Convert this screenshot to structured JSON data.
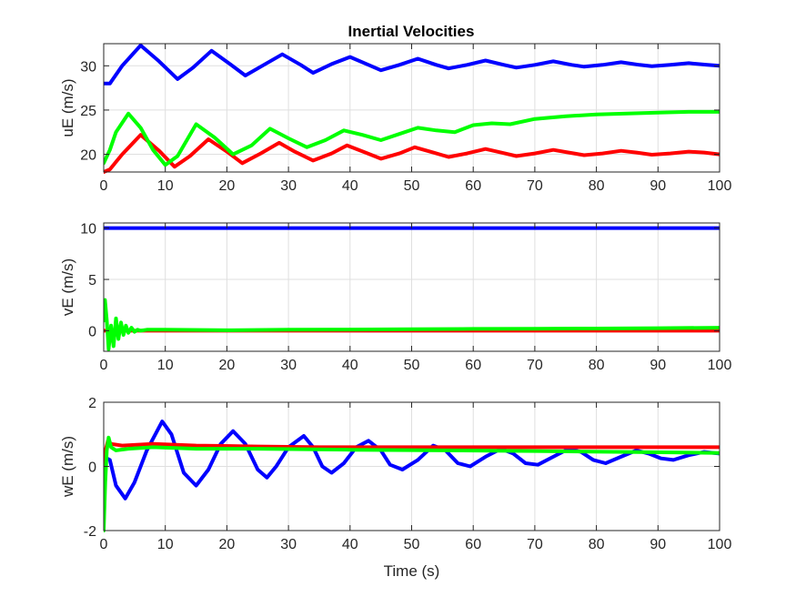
{
  "figure": {
    "title": "Inertial Velocities",
    "colors": {
      "blue": "#0000ff",
      "red": "#ff0000",
      "green": "#00ff00"
    }
  },
  "chart_data": [
    {
      "type": "line",
      "title": "Inertial Velocities",
      "xlabel": "",
      "ylabel": "uE (m/s)",
      "xlim": [
        0,
        100
      ],
      "ylim": [
        18,
        32.5
      ],
      "xticks": [
        0,
        10,
        20,
        30,
        40,
        50,
        60,
        70,
        80,
        90,
        100
      ],
      "yticks": [
        20,
        25,
        30
      ],
      "grid": true,
      "series": [
        {
          "color": "#0000ff",
          "x": [
            0,
            1,
            3,
            6,
            9,
            12,
            14.5,
            17.5,
            20.5,
            23,
            26,
            29,
            32,
            34,
            37,
            40,
            43,
            45,
            48,
            51,
            54,
            56,
            59,
            62,
            65,
            67,
            70,
            73,
            76,
            78,
            81,
            84,
            87,
            89,
            92,
            95,
            98,
            100
          ],
          "y": [
            28,
            28,
            30,
            32.3,
            30.5,
            28.5,
            29.8,
            31.7,
            30.2,
            28.9,
            30.1,
            31.3,
            30.1,
            29.2,
            30.2,
            31,
            30.1,
            29.5,
            30.1,
            30.8,
            30.1,
            29.7,
            30.1,
            30.6,
            30.1,
            29.8,
            30.1,
            30.5,
            30.1,
            29.9,
            30.1,
            30.4,
            30.1,
            29.95,
            30.1,
            30.3,
            30.1,
            30
          ]
        },
        {
          "color": "#ff0000",
          "x": [
            0,
            1,
            3,
            6,
            9,
            11.5,
            14,
            17,
            20,
            22.5,
            25.5,
            28.5,
            31,
            34,
            37,
            39.5,
            42.5,
            45,
            48,
            50.5,
            53.5,
            56,
            59,
            62,
            64.5,
            67,
            70,
            73,
            75.5,
            78,
            81,
            84,
            86.5,
            89,
            92,
            95,
            97.5,
            100
          ],
          "y": [
            18,
            18.3,
            20,
            22.2,
            20.4,
            18.6,
            19.8,
            21.7,
            20.3,
            19,
            20.1,
            21.3,
            20.3,
            19.3,
            20.1,
            21,
            20.2,
            19.5,
            20.1,
            20.8,
            20.2,
            19.7,
            20.1,
            20.6,
            20.2,
            19.8,
            20.1,
            20.5,
            20.2,
            19.9,
            20.1,
            20.4,
            20.2,
            19.95,
            20.1,
            20.3,
            20.2,
            20
          ]
        },
        {
          "color": "#00ff00",
          "x": [
            0,
            1,
            2,
            4,
            6,
            8,
            10,
            12,
            15,
            18,
            21,
            24,
            27,
            30,
            33,
            36,
            39,
            42,
            45,
            48,
            51,
            54,
            57,
            60,
            63,
            66,
            70,
            75,
            80,
            85,
            90,
            95,
            100
          ],
          "y": [
            19,
            20.5,
            22.5,
            24.6,
            23,
            20.5,
            18.8,
            19.8,
            23.4,
            21.9,
            20,
            21,
            22.9,
            21.8,
            20.8,
            21.6,
            22.7,
            22.2,
            21.6,
            22.3,
            23,
            22.7,
            22.5,
            23.3,
            23.5,
            23.4,
            24,
            24.3,
            24.5,
            24.6,
            24.7,
            24.8,
            24.8
          ]
        }
      ]
    },
    {
      "type": "line",
      "xlabel": "",
      "ylabel": "vE (m/s)",
      "xlim": [
        0,
        100
      ],
      "ylim": [
        -2,
        10.5
      ],
      "xticks": [
        0,
        10,
        20,
        30,
        40,
        50,
        60,
        70,
        80,
        90,
        100
      ],
      "yticks": [
        0,
        5,
        10
      ],
      "grid": true,
      "series": [
        {
          "color": "#0000ff",
          "x": [
            0,
            100
          ],
          "y": [
            10,
            10
          ]
        },
        {
          "color": "#ff0000",
          "x": [
            0,
            100
          ],
          "y": [
            0,
            0
          ]
        },
        {
          "color": "#00ff00",
          "x": [
            0,
            0.2,
            0.5,
            0.8,
            1.2,
            1.6,
            2,
            2.4,
            2.8,
            3.2,
            3.6,
            4,
            4.5,
            5,
            5.5,
            6,
            7,
            10,
            20,
            30,
            40,
            50,
            60,
            70,
            80,
            90,
            100
          ],
          "y": [
            1,
            3,
            1,
            -1.8,
            0.5,
            -1.5,
            1.2,
            -0.8,
            0.8,
            -0.4,
            0.5,
            -0.2,
            0.3,
            -0.1,
            0.1,
            0,
            0.1,
            0.1,
            0.05,
            0.1,
            0.12,
            0.15,
            0.18,
            0.2,
            0.22,
            0.25,
            0.3
          ]
        }
      ]
    },
    {
      "type": "line",
      "xlabel": "Time (s)",
      "ylabel": "wE (m/s)",
      "xlim": [
        0,
        100
      ],
      "ylim": [
        -2,
        2
      ],
      "xticks": [
        0,
        10,
        20,
        30,
        40,
        50,
        60,
        70,
        80,
        90,
        100
      ],
      "yticks": [
        -2,
        0,
        2
      ],
      "grid": true,
      "series": [
        {
          "color": "#0000ff",
          "x": [
            0,
            1,
            2,
            3.5,
            5,
            7,
            9.5,
            11,
            13,
            15,
            17,
            19,
            21,
            23,
            25,
            26.5,
            28,
            30,
            32.5,
            34,
            35.5,
            37,
            39,
            41,
            43,
            45,
            46.5,
            48.5,
            51,
            53.5,
            55.5,
            57.5,
            59.5,
            62,
            64.5,
            66.5,
            68.5,
            70.5,
            73,
            75.5,
            77.5,
            79.5,
            81.5,
            84,
            86.5,
            88.5,
            90.5,
            92.5,
            95,
            97.5,
            100
          ],
          "y": [
            0.3,
            0.2,
            -0.6,
            -1,
            -0.5,
            0.5,
            1.4,
            1,
            -0.2,
            -0.6,
            -0.1,
            0.7,
            1.1,
            0.7,
            -0.1,
            -0.35,
            0,
            0.6,
            0.95,
            0.6,
            0,
            -0.2,
            0.1,
            0.6,
            0.8,
            0.5,
            0.05,
            -0.1,
            0.2,
            0.65,
            0.5,
            0.1,
            0,
            0.3,
            0.55,
            0.4,
            0.1,
            0.05,
            0.3,
            0.55,
            0.45,
            0.2,
            0.1,
            0.3,
            0.5,
            0.4,
            0.25,
            0.2,
            0.35,
            0.45,
            0.4
          ]
        },
        {
          "color": "#ff0000",
          "x": [
            0,
            0.3,
            0.7,
            1.2,
            3,
            8,
            15,
            25,
            35,
            50,
            65,
            80,
            100
          ],
          "y": [
            -1.5,
            0.5,
            0.8,
            0.7,
            0.65,
            0.7,
            0.65,
            0.62,
            0.6,
            0.6,
            0.6,
            0.6,
            0.6
          ]
        },
        {
          "color": "#00ff00",
          "x": [
            0,
            0.25,
            0.5,
            0.8,
            1.2,
            2,
            4,
            8,
            15,
            25,
            40,
            55,
            70,
            85,
            100
          ],
          "y": [
            -2,
            -0.5,
            0.5,
            0.9,
            0.6,
            0.5,
            0.55,
            0.6,
            0.55,
            0.55,
            0.52,
            0.5,
            0.48,
            0.45,
            0.42
          ]
        }
      ]
    }
  ]
}
